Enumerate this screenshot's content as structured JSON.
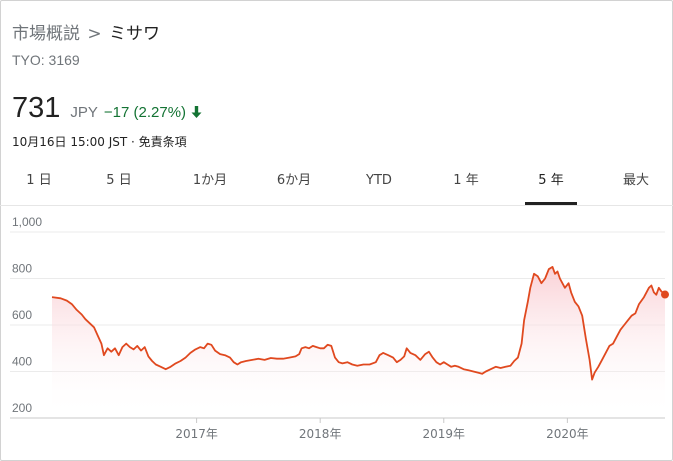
{
  "header": {
    "breadcrumb_parent": "市場概説",
    "breadcrumb_separator": ">",
    "company": "ミサワ",
    "ticker": "TYO: 3169"
  },
  "quote": {
    "price": "731",
    "currency": "JPY",
    "change": "−17 (2.27%)",
    "direction_icon": "arrow-down-icon",
    "timestamp": "10月16日 15:00 JST · 免責条項"
  },
  "colors": {
    "line": "#e0491f",
    "fill": "#fde8ea",
    "down": "#137333",
    "grid": "#ebebeb"
  },
  "tabs": [
    {
      "label": "1 日"
    },
    {
      "label": "5 日"
    },
    {
      "label": "1か月"
    },
    {
      "label": "6か月"
    },
    {
      "label": "YTD"
    },
    {
      "label": "1 年"
    },
    {
      "label": "5 年",
      "active": true
    },
    {
      "label": "最大"
    }
  ],
  "chart_data": {
    "type": "area",
    "ylim": [
      200,
      1000
    ],
    "yticks": [
      200,
      400,
      600,
      800,
      1000
    ],
    "ytick_labels": [
      "200",
      "400",
      "600",
      "800",
      "1,000"
    ],
    "xlim": [
      2015.83,
      2020.79
    ],
    "xticks": [
      2017.0,
      2018.0,
      2019.0,
      2020.0
    ],
    "xtick_labels": [
      "2017年",
      "2018年",
      "2019年",
      "2020年"
    ],
    "grid": true,
    "last_point_marker": true,
    "points": [
      [
        2015.83,
        720
      ],
      [
        2015.9,
        715
      ],
      [
        2015.95,
        705
      ],
      [
        2015.99,
        690
      ],
      [
        2016.03,
        665
      ],
      [
        2016.07,
        645
      ],
      [
        2016.1,
        625
      ],
      [
        2016.13,
        610
      ],
      [
        2016.17,
        590
      ],
      [
        2016.2,
        555
      ],
      [
        2016.23,
        520
      ],
      [
        2016.25,
        470
      ],
      [
        2016.28,
        500
      ],
      [
        2016.31,
        485
      ],
      [
        2016.34,
        500
      ],
      [
        2016.37,
        470
      ],
      [
        2016.4,
        505
      ],
      [
        2016.43,
        520
      ],
      [
        2016.46,
        505
      ],
      [
        2016.49,
        495
      ],
      [
        2016.52,
        510
      ],
      [
        2016.55,
        490
      ],
      [
        2016.58,
        505
      ],
      [
        2016.61,
        465
      ],
      [
        2016.64,
        445
      ],
      [
        2016.67,
        430
      ],
      [
        2016.71,
        420
      ],
      [
        2016.75,
        410
      ],
      [
        2016.79,
        420
      ],
      [
        2016.83,
        435
      ],
      [
        2016.87,
        445
      ],
      [
        2016.91,
        460
      ],
      [
        2016.95,
        480
      ],
      [
        2016.99,
        495
      ],
      [
        2017.03,
        505
      ],
      [
        2017.06,
        500
      ],
      [
        2017.09,
        520
      ],
      [
        2017.12,
        515
      ],
      [
        2017.15,
        490
      ],
      [
        2017.19,
        475
      ],
      [
        2017.23,
        470
      ],
      [
        2017.27,
        460
      ],
      [
        2017.3,
        440
      ],
      [
        2017.33,
        430
      ],
      [
        2017.36,
        440
      ],
      [
        2017.4,
        445
      ],
      [
        2017.45,
        450
      ],
      [
        2017.5,
        455
      ],
      [
        2017.55,
        450
      ],
      [
        2017.6,
        458
      ],
      [
        2017.65,
        455
      ],
      [
        2017.7,
        455
      ],
      [
        2017.75,
        460
      ],
      [
        2017.8,
        465
      ],
      [
        2017.83,
        475
      ],
      [
        2017.85,
        500
      ],
      [
        2017.88,
        505
      ],
      [
        2017.91,
        500
      ],
      [
        2017.94,
        510
      ],
      [
        2017.97,
        505
      ],
      [
        2018.0,
        500
      ],
      [
        2018.03,
        500
      ],
      [
        2018.06,
        515
      ],
      [
        2018.09,
        510
      ],
      [
        2018.12,
        460
      ],
      [
        2018.15,
        440
      ],
      [
        2018.18,
        435
      ],
      [
        2018.22,
        440
      ],
      [
        2018.26,
        430
      ],
      [
        2018.3,
        425
      ],
      [
        2018.35,
        430
      ],
      [
        2018.4,
        430
      ],
      [
        2018.45,
        440
      ],
      [
        2018.48,
        470
      ],
      [
        2018.51,
        480
      ],
      [
        2018.55,
        470
      ],
      [
        2018.59,
        460
      ],
      [
        2018.62,
        440
      ],
      [
        2018.65,
        450
      ],
      [
        2018.68,
        465
      ],
      [
        2018.7,
        500
      ],
      [
        2018.73,
        480
      ],
      [
        2018.77,
        470
      ],
      [
        2018.81,
        450
      ],
      [
        2018.85,
        475
      ],
      [
        2018.88,
        485
      ],
      [
        2018.91,
        460
      ],
      [
        2018.94,
        440
      ],
      [
        2018.97,
        430
      ],
      [
        2019.0,
        440
      ],
      [
        2019.03,
        430
      ],
      [
        2019.06,
        420
      ],
      [
        2019.09,
        425
      ],
      [
        2019.12,
        420
      ],
      [
        2019.16,
        410
      ],
      [
        2019.2,
        405
      ],
      [
        2019.24,
        400
      ],
      [
        2019.28,
        395
      ],
      [
        2019.31,
        390
      ],
      [
        2019.34,
        400
      ],
      [
        2019.38,
        410
      ],
      [
        2019.42,
        420
      ],
      [
        2019.46,
        415
      ],
      [
        2019.5,
        420
      ],
      [
        2019.54,
        425
      ],
      [
        2019.57,
        445
      ],
      [
        2019.6,
        460
      ],
      [
        2019.63,
        520
      ],
      [
        2019.65,
        620
      ],
      [
        2019.68,
        700
      ],
      [
        2019.7,
        760
      ],
      [
        2019.73,
        820
      ],
      [
        2019.76,
        810
      ],
      [
        2019.79,
        780
      ],
      [
        2019.82,
        800
      ],
      [
        2019.85,
        840
      ],
      [
        2019.88,
        850
      ],
      [
        2019.9,
        820
      ],
      [
        2019.92,
        830
      ],
      [
        2019.94,
        800
      ],
      [
        2019.96,
        780
      ],
      [
        2019.98,
        760
      ],
      [
        2020.01,
        780
      ],
      [
        2020.03,
        740
      ],
      [
        2020.06,
        700
      ],
      [
        2020.09,
        680
      ],
      [
        2020.12,
        640
      ],
      [
        2020.15,
        540
      ],
      [
        2020.18,
        450
      ],
      [
        2020.2,
        365
      ],
      [
        2020.22,
        395
      ],
      [
        2020.25,
        420
      ],
      [
        2020.28,
        450
      ],
      [
        2020.31,
        480
      ],
      [
        2020.34,
        510
      ],
      [
        2020.37,
        520
      ],
      [
        2020.4,
        550
      ],
      [
        2020.43,
        580
      ],
      [
        2020.46,
        600
      ],
      [
        2020.49,
        620
      ],
      [
        2020.52,
        640
      ],
      [
        2020.55,
        650
      ],
      [
        2020.58,
        690
      ],
      [
        2020.62,
        720
      ],
      [
        2020.66,
        760
      ],
      [
        2020.68,
        770
      ],
      [
        2020.7,
        740
      ],
      [
        2020.72,
        730
      ],
      [
        2020.74,
        760
      ],
      [
        2020.76,
        745
      ],
      [
        2020.79,
        731
      ]
    ]
  }
}
